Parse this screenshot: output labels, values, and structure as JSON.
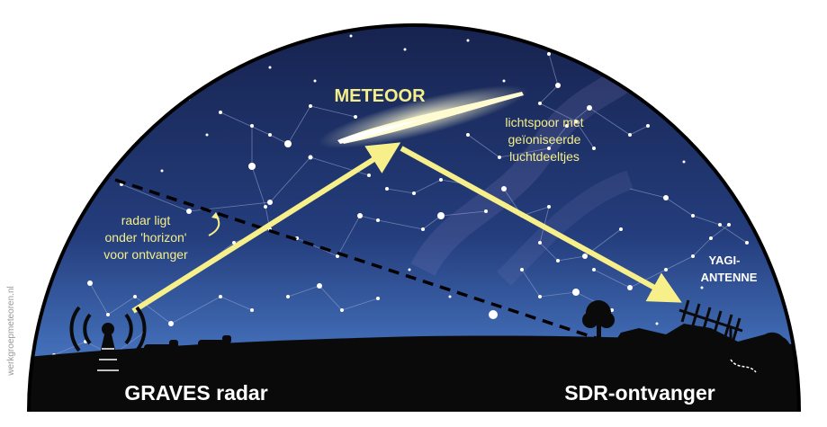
{
  "labels": {
    "meteor": "METEOOR",
    "trail": [
      "lichtspoor met",
      "geïoniseerde",
      "luchtdeeltjes"
    ],
    "radar_note": [
      "radar ligt",
      "onder 'horizon'",
      "voor ontvanger"
    ],
    "antenna": [
      "YAGI-",
      "ANTENNE"
    ],
    "transmitter": "GRAVES radar",
    "receiver": "SDR-ontvanger",
    "credit": "werkgroepmeteoren.nl"
  },
  "colors": {
    "sky_top": "#15204a",
    "sky_mid": "#2a4a8c",
    "sky_horizon": "#5d8fd6",
    "ground": "#0a0a0a",
    "beam": "#f7f08a",
    "label_yellow": "#f5ef8a",
    "dome_outline": "#000000"
  },
  "icons": [
    "radio-tower-icon",
    "cow-icon",
    "tree-icon",
    "yagi-antenna-icon"
  ]
}
